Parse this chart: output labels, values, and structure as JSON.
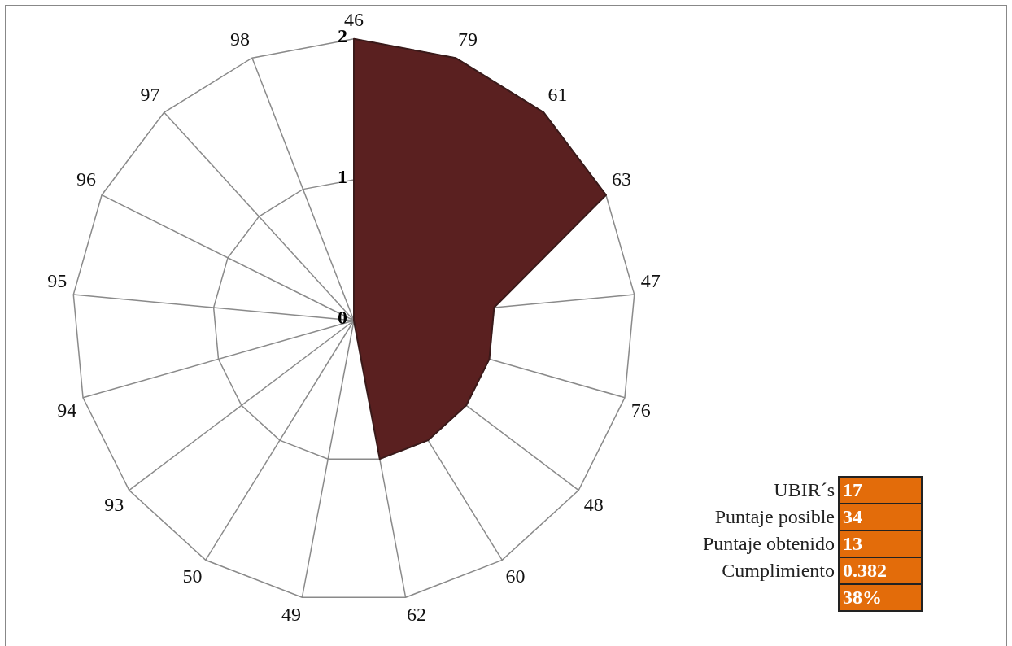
{
  "chart_data": {
    "type": "radar",
    "categories": [
      "46",
      "79",
      "61",
      "63",
      "47",
      "76",
      "48",
      "60",
      "62",
      "49",
      "50",
      "93",
      "94",
      "95",
      "96",
      "97",
      "98"
    ],
    "series": [
      {
        "color": "#5a2020",
        "values": [
          2,
          2,
          2,
          2,
          1,
          1,
          1,
          1,
          1,
          0,
          0,
          0,
          0,
          0,
          0,
          0,
          0
        ]
      }
    ],
    "ylim": [
      0,
      2
    ],
    "yticks": [
      0,
      1,
      2
    ],
    "grid": true,
    "legend": false,
    "marker": "none",
    "annotations": [
      "UBIR´s",
      "17",
      "Puntaje posible",
      "34",
      "Puntaje obtenido",
      "13",
      "Cumplimiento",
      "0.382",
      "38%"
    ]
  }
}
